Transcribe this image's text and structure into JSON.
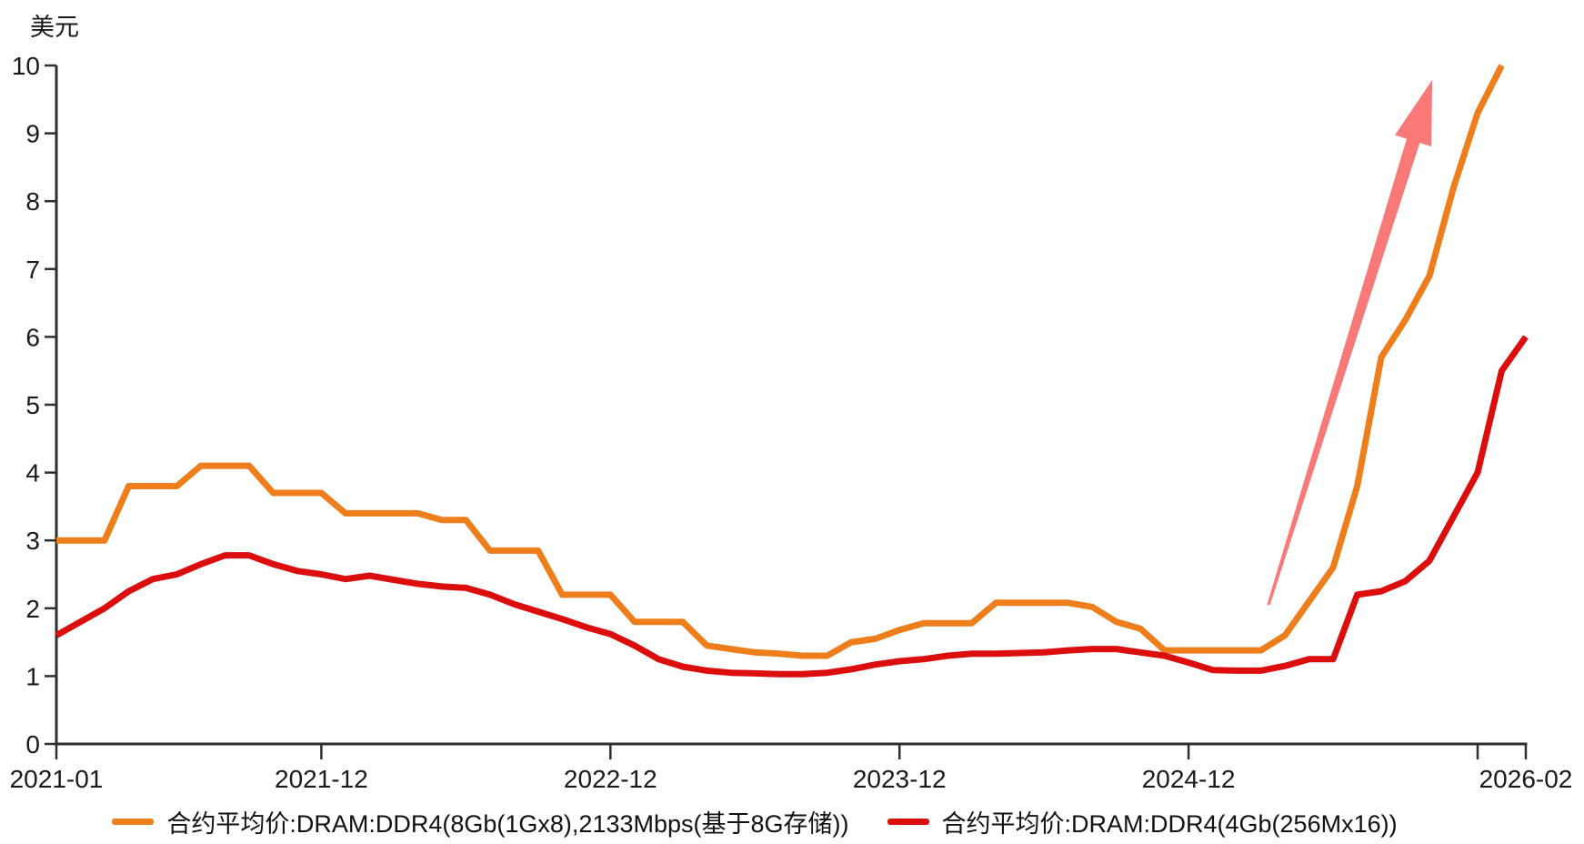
{
  "chart": {
    "y_axis_title": "美元",
    "y_ticks": [
      "0",
      "1",
      "2",
      "3",
      "4",
      "5",
      "6",
      "7",
      "8",
      "9",
      "10"
    ],
    "x_ticks": [
      {
        "label": "2021-01",
        "month": 0
      },
      {
        "label": "2021-12",
        "month": 11
      },
      {
        "label": "2022-12",
        "month": 23
      },
      {
        "label": "2023-12",
        "month": 35
      },
      {
        "label": "2024-12",
        "month": 47
      },
      {
        "label": "",
        "month": 59
      },
      {
        "label": "2026-02",
        "month": 61
      }
    ],
    "legend": [
      {
        "label": "合约平均价:DRAM:DDR4(8Gb(1Gx8),2133Mbps(基于8G存储))",
        "color": "#ee7e1b"
      },
      {
        "label": "合约平均价:DRAM:DDR4(4Gb(256Mx16))",
        "color": "#dc0d0d"
      }
    ],
    "annotation": {
      "type": "surge-up-arrow",
      "color": "#f86565"
    },
    "axis_color": "#2f2f2f",
    "text_color": "#1a1a1a"
  },
  "chart_data": {
    "type": "line",
    "title": "",
    "xlabel": "",
    "ylabel": "美元",
    "ylim": [
      0,
      10
    ],
    "grid": false,
    "legend_position": "bottom",
    "x": [
      "2021-01",
      "2021-02",
      "2021-03",
      "2021-04",
      "2021-05",
      "2021-06",
      "2021-07",
      "2021-08",
      "2021-09",
      "2021-10",
      "2021-11",
      "2021-12",
      "2022-01",
      "2022-02",
      "2022-03",
      "2022-04",
      "2022-05",
      "2022-06",
      "2022-07",
      "2022-08",
      "2022-09",
      "2022-10",
      "2022-11",
      "2022-12",
      "2023-01",
      "2023-02",
      "2023-03",
      "2023-04",
      "2023-05",
      "2023-06",
      "2023-07",
      "2023-08",
      "2023-09",
      "2023-10",
      "2023-11",
      "2023-12",
      "2024-01",
      "2024-02",
      "2024-03",
      "2024-04",
      "2024-05",
      "2024-06",
      "2024-07",
      "2024-08",
      "2024-09",
      "2024-10",
      "2024-11",
      "2024-12",
      "2025-01",
      "2025-02",
      "2025-03",
      "2025-04",
      "2025-05",
      "2025-06",
      "2025-07",
      "2025-08",
      "2025-09",
      "2025-10",
      "2025-11",
      "2025-12",
      "2026-01",
      "2026-02"
    ],
    "series": [
      {
        "name": "合约平均价:DRAM:DDR4(8Gb(1Gx8),2133Mbps(基于8G存储))",
        "color": "#ee7e1b",
        "values": [
          3.0,
          3.0,
          3.0,
          3.8,
          3.8,
          3.8,
          4.1,
          4.1,
          4.1,
          3.7,
          3.7,
          3.7,
          3.4,
          3.4,
          3.4,
          3.4,
          3.3,
          3.3,
          2.85,
          2.85,
          2.85,
          2.2,
          2.2,
          2.2,
          1.8,
          1.8,
          1.8,
          1.45,
          1.4,
          1.35,
          1.33,
          1.3,
          1.3,
          1.5,
          1.55,
          1.68,
          1.78,
          1.78,
          1.78,
          2.08,
          2.08,
          2.08,
          2.08,
          2.02,
          1.8,
          1.7,
          1.38,
          1.38,
          1.38,
          1.38,
          1.38,
          1.6,
          2.1,
          2.6,
          3.8,
          5.7,
          6.25,
          6.9,
          8.2,
          9.3,
          10.0,
          null
        ]
      },
      {
        "name": "合约平均价:DRAM:DDR4(4Gb(256Mx16))",
        "color": "#dc0d0d",
        "values": [
          1.6,
          1.8,
          2.0,
          2.25,
          2.43,
          2.5,
          2.65,
          2.78,
          2.78,
          2.65,
          2.55,
          2.5,
          2.43,
          2.48,
          2.42,
          2.36,
          2.32,
          2.3,
          2.2,
          2.06,
          1.95,
          1.84,
          1.72,
          1.62,
          1.45,
          1.25,
          1.14,
          1.08,
          1.05,
          1.04,
          1.03,
          1.03,
          1.05,
          1.1,
          1.17,
          1.22,
          1.25,
          1.3,
          1.33,
          1.33,
          1.34,
          1.35,
          1.38,
          1.4,
          1.4,
          1.35,
          1.3,
          1.2,
          1.09,
          1.08,
          1.08,
          1.15,
          1.25,
          1.25,
          2.2,
          2.25,
          2.4,
          2.7,
          3.35,
          4.0,
          5.5,
          6.0
        ]
      }
    ]
  }
}
